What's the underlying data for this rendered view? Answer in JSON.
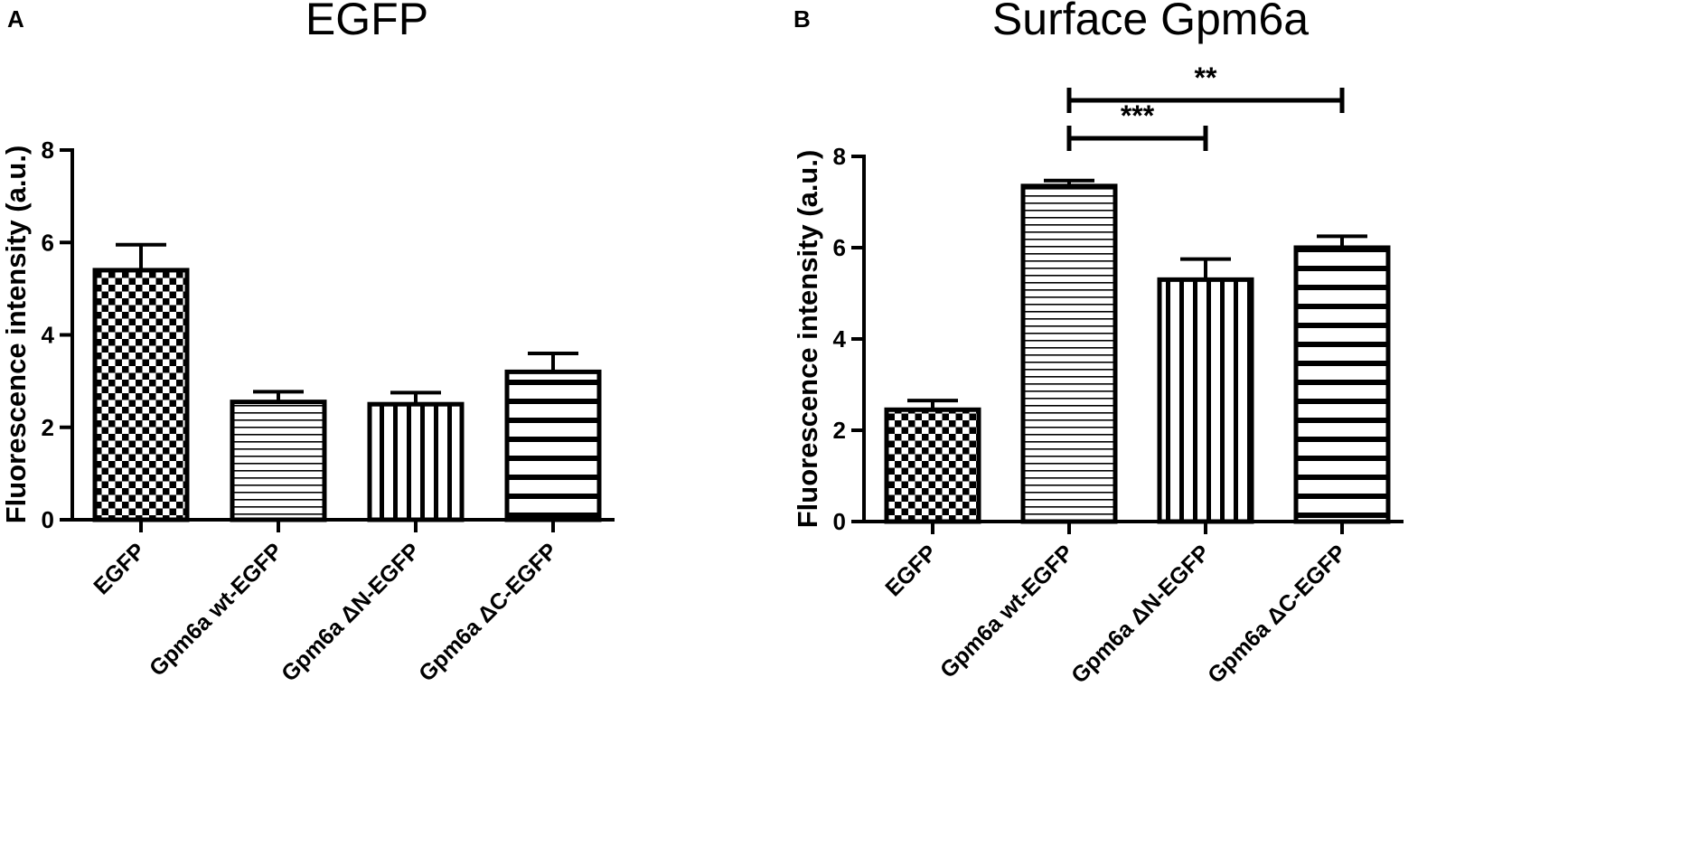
{
  "chart_data": [
    {
      "type": "bar",
      "panel": "A",
      "title": "EGFP",
      "ylabel": "Fluorescence intensity (a.u.)",
      "xlabel": "",
      "categories": [
        "EGFP",
        "Gpm6a wt-EGFP",
        "Gpm6a ΔN-EGFP",
        "Gpm6a ΔC-EGFP"
      ],
      "values": [
        5.4,
        2.55,
        2.5,
        3.2
      ],
      "errors": [
        0.55,
        0.22,
        0.25,
        0.4
      ],
      "patterns": [
        "checker",
        "hlines-fine",
        "vlines",
        "hlines-thick"
      ],
      "ylim": [
        0,
        8
      ],
      "yticks": [
        0,
        2,
        4,
        6,
        8
      ],
      "significance": []
    },
    {
      "type": "bar",
      "panel": "B",
      "title": "Surface Gpm6a",
      "ylabel": "Fluorescence intensity (a.u.)",
      "xlabel": "",
      "categories": [
        "EGFP",
        "Gpm6a wt-EGFP",
        "Gpm6a ΔN-EGFP",
        "Gpm6a ΔC-EGFP"
      ],
      "values": [
        2.45,
        7.35,
        5.3,
        6.0
      ],
      "errors": [
        0.2,
        0.12,
        0.45,
        0.25
      ],
      "patterns": [
        "checker",
        "hlines-fine",
        "vlines",
        "hlines-thick"
      ],
      "ylim": [
        0,
        8
      ],
      "yticks": [
        0,
        2,
        4,
        6,
        8
      ],
      "significance": [
        {
          "from": 1,
          "to": 2,
          "label": "***"
        },
        {
          "from": 1,
          "to": 3,
          "label": "**"
        }
      ]
    }
  ]
}
